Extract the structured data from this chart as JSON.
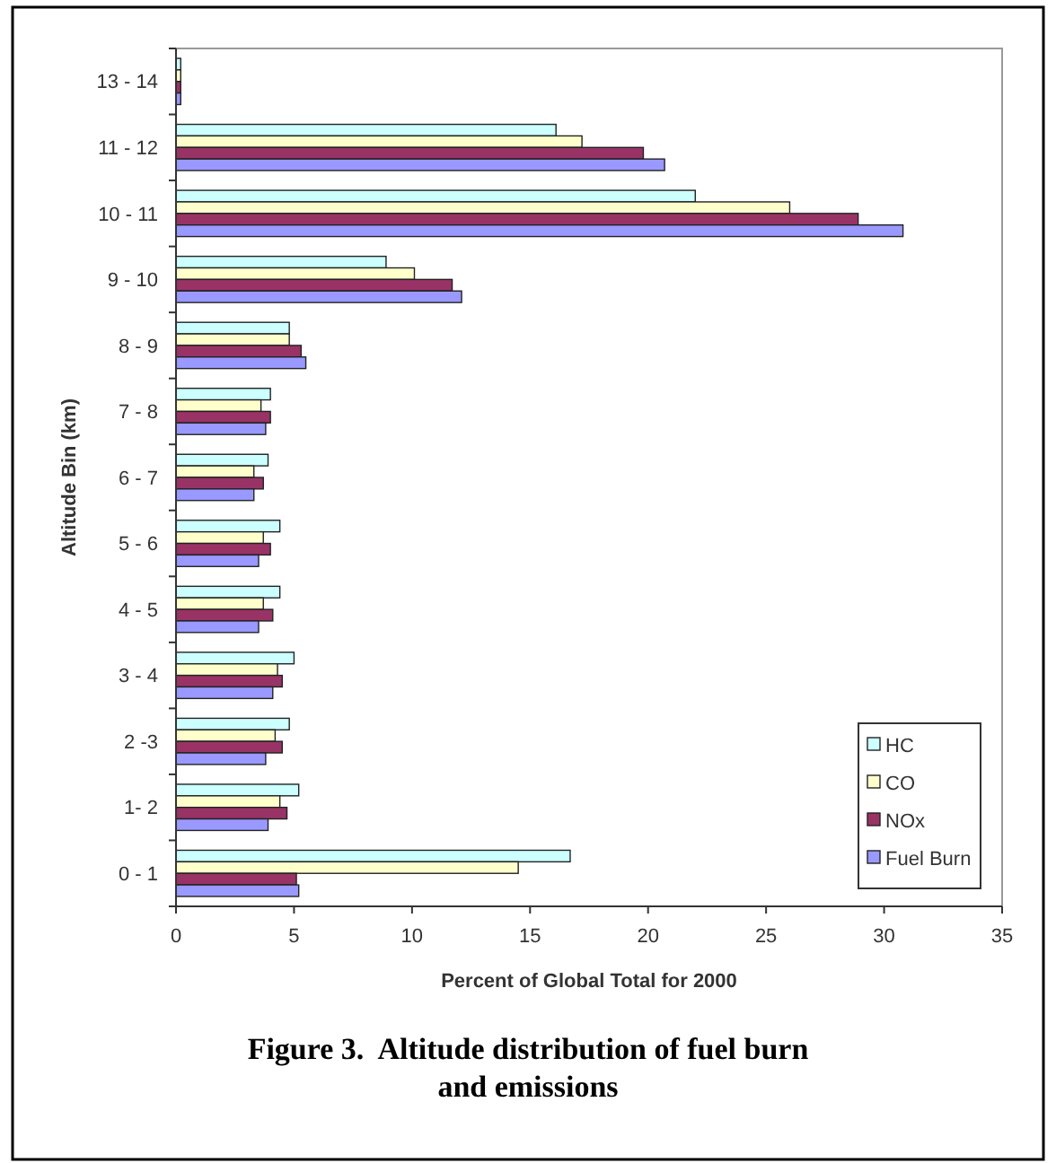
{
  "chart_data": {
    "type": "bar",
    "orientation": "horizontal",
    "title": "Figure 3.  Altitude distribution of fuel burn and emissions",
    "xlabel": "Percent of Global Total for 2000",
    "ylabel": "Altitude Bin (km)",
    "categories": [
      "13 - 14",
      "11 - 12",
      "10 - 11",
      "9 - 10",
      "8 - 9",
      "7 - 8",
      "6 - 7",
      "5 - 6",
      "4 - 5",
      "3 - 4",
      "2 -3",
      "1- 2",
      "0 - 1"
    ],
    "series": [
      {
        "name": "HC",
        "color": "#ccffff",
        "values": [
          0.2,
          16.1,
          22.0,
          8.9,
          4.8,
          4.0,
          3.9,
          4.4,
          4.4,
          5.0,
          4.8,
          5.2,
          16.7
        ]
      },
      {
        "name": "CO",
        "color": "#ffffcc",
        "values": [
          0.2,
          17.2,
          26.0,
          10.1,
          4.8,
          3.6,
          3.3,
          3.7,
          3.7,
          4.3,
          4.2,
          4.4,
          14.5
        ]
      },
      {
        "name": "NOx",
        "color": "#993366",
        "values": [
          0.2,
          19.8,
          28.9,
          11.7,
          5.3,
          4.0,
          3.7,
          4.0,
          4.1,
          4.5,
          4.5,
          4.7,
          5.1
        ]
      },
      {
        "name": "Fuel Burn",
        "color": "#9999ff",
        "values": [
          0.2,
          20.7,
          30.8,
          12.1,
          5.5,
          3.8,
          3.3,
          3.5,
          3.5,
          4.1,
          3.8,
          3.9,
          5.2
        ]
      }
    ],
    "xlim": [
      0,
      35
    ],
    "xticks": [
      0,
      5,
      10,
      15,
      20,
      25,
      30,
      35
    ],
    "grid": false,
    "legend": "bottom right"
  }
}
